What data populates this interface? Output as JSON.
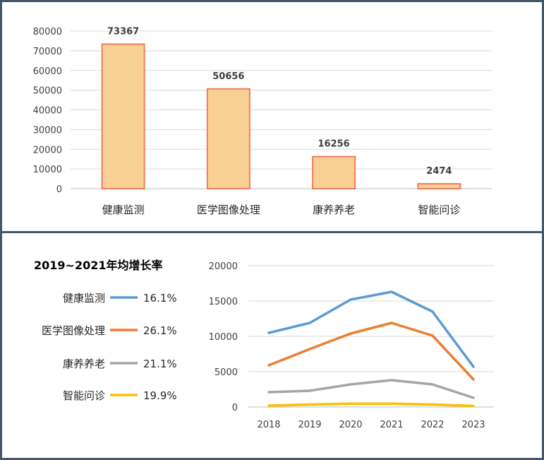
{
  "chart_data": [
    {
      "type": "bar",
      "categories": [
        "健康监测",
        "医学图像处理",
        "康养养老",
        "智能问诊"
      ],
      "values": [
        73367,
        50656,
        16256,
        2474
      ],
      "ylim": [
        0,
        80000
      ],
      "yticks": [
        0,
        10000,
        20000,
        30000,
        40000,
        50000,
        60000,
        70000,
        80000
      ],
      "grid": true,
      "data_labels": true,
      "colors": {
        "fill": "#f9d094",
        "stroke": "#f07c5c"
      }
    },
    {
      "type": "line",
      "x": [
        "2018",
        "2019",
        "2020",
        "2021",
        "2022",
        "2023"
      ],
      "ylim": [
        0,
        20000
      ],
      "yticks": [
        0,
        5000,
        10000,
        15000,
        20000
      ],
      "grid": true,
      "legend": {
        "title": "2019~2021年均增长率",
        "placement": "left"
      },
      "series": [
        {
          "name": "健康监测",
          "growth": "16.1%",
          "color": "#5b9bd5",
          "values": [
            10500,
            11900,
            15200,
            16300,
            13500,
            5700
          ]
        },
        {
          "name": "医学图像处理",
          "growth": "26.1%",
          "color": "#ed7d31",
          "values": [
            5900,
            8200,
            10400,
            11900,
            10100,
            3900
          ]
        },
        {
          "name": "康养养老",
          "growth": "21.1%",
          "color": "#a5a5a5",
          "values": [
            2100,
            2300,
            3200,
            3800,
            3200,
            1300
          ]
        },
        {
          "name": "智能问诊",
          "growth": "19.9%",
          "color": "#ffc000",
          "values": [
            200,
            350,
            480,
            480,
            350,
            150
          ]
        }
      ]
    }
  ]
}
